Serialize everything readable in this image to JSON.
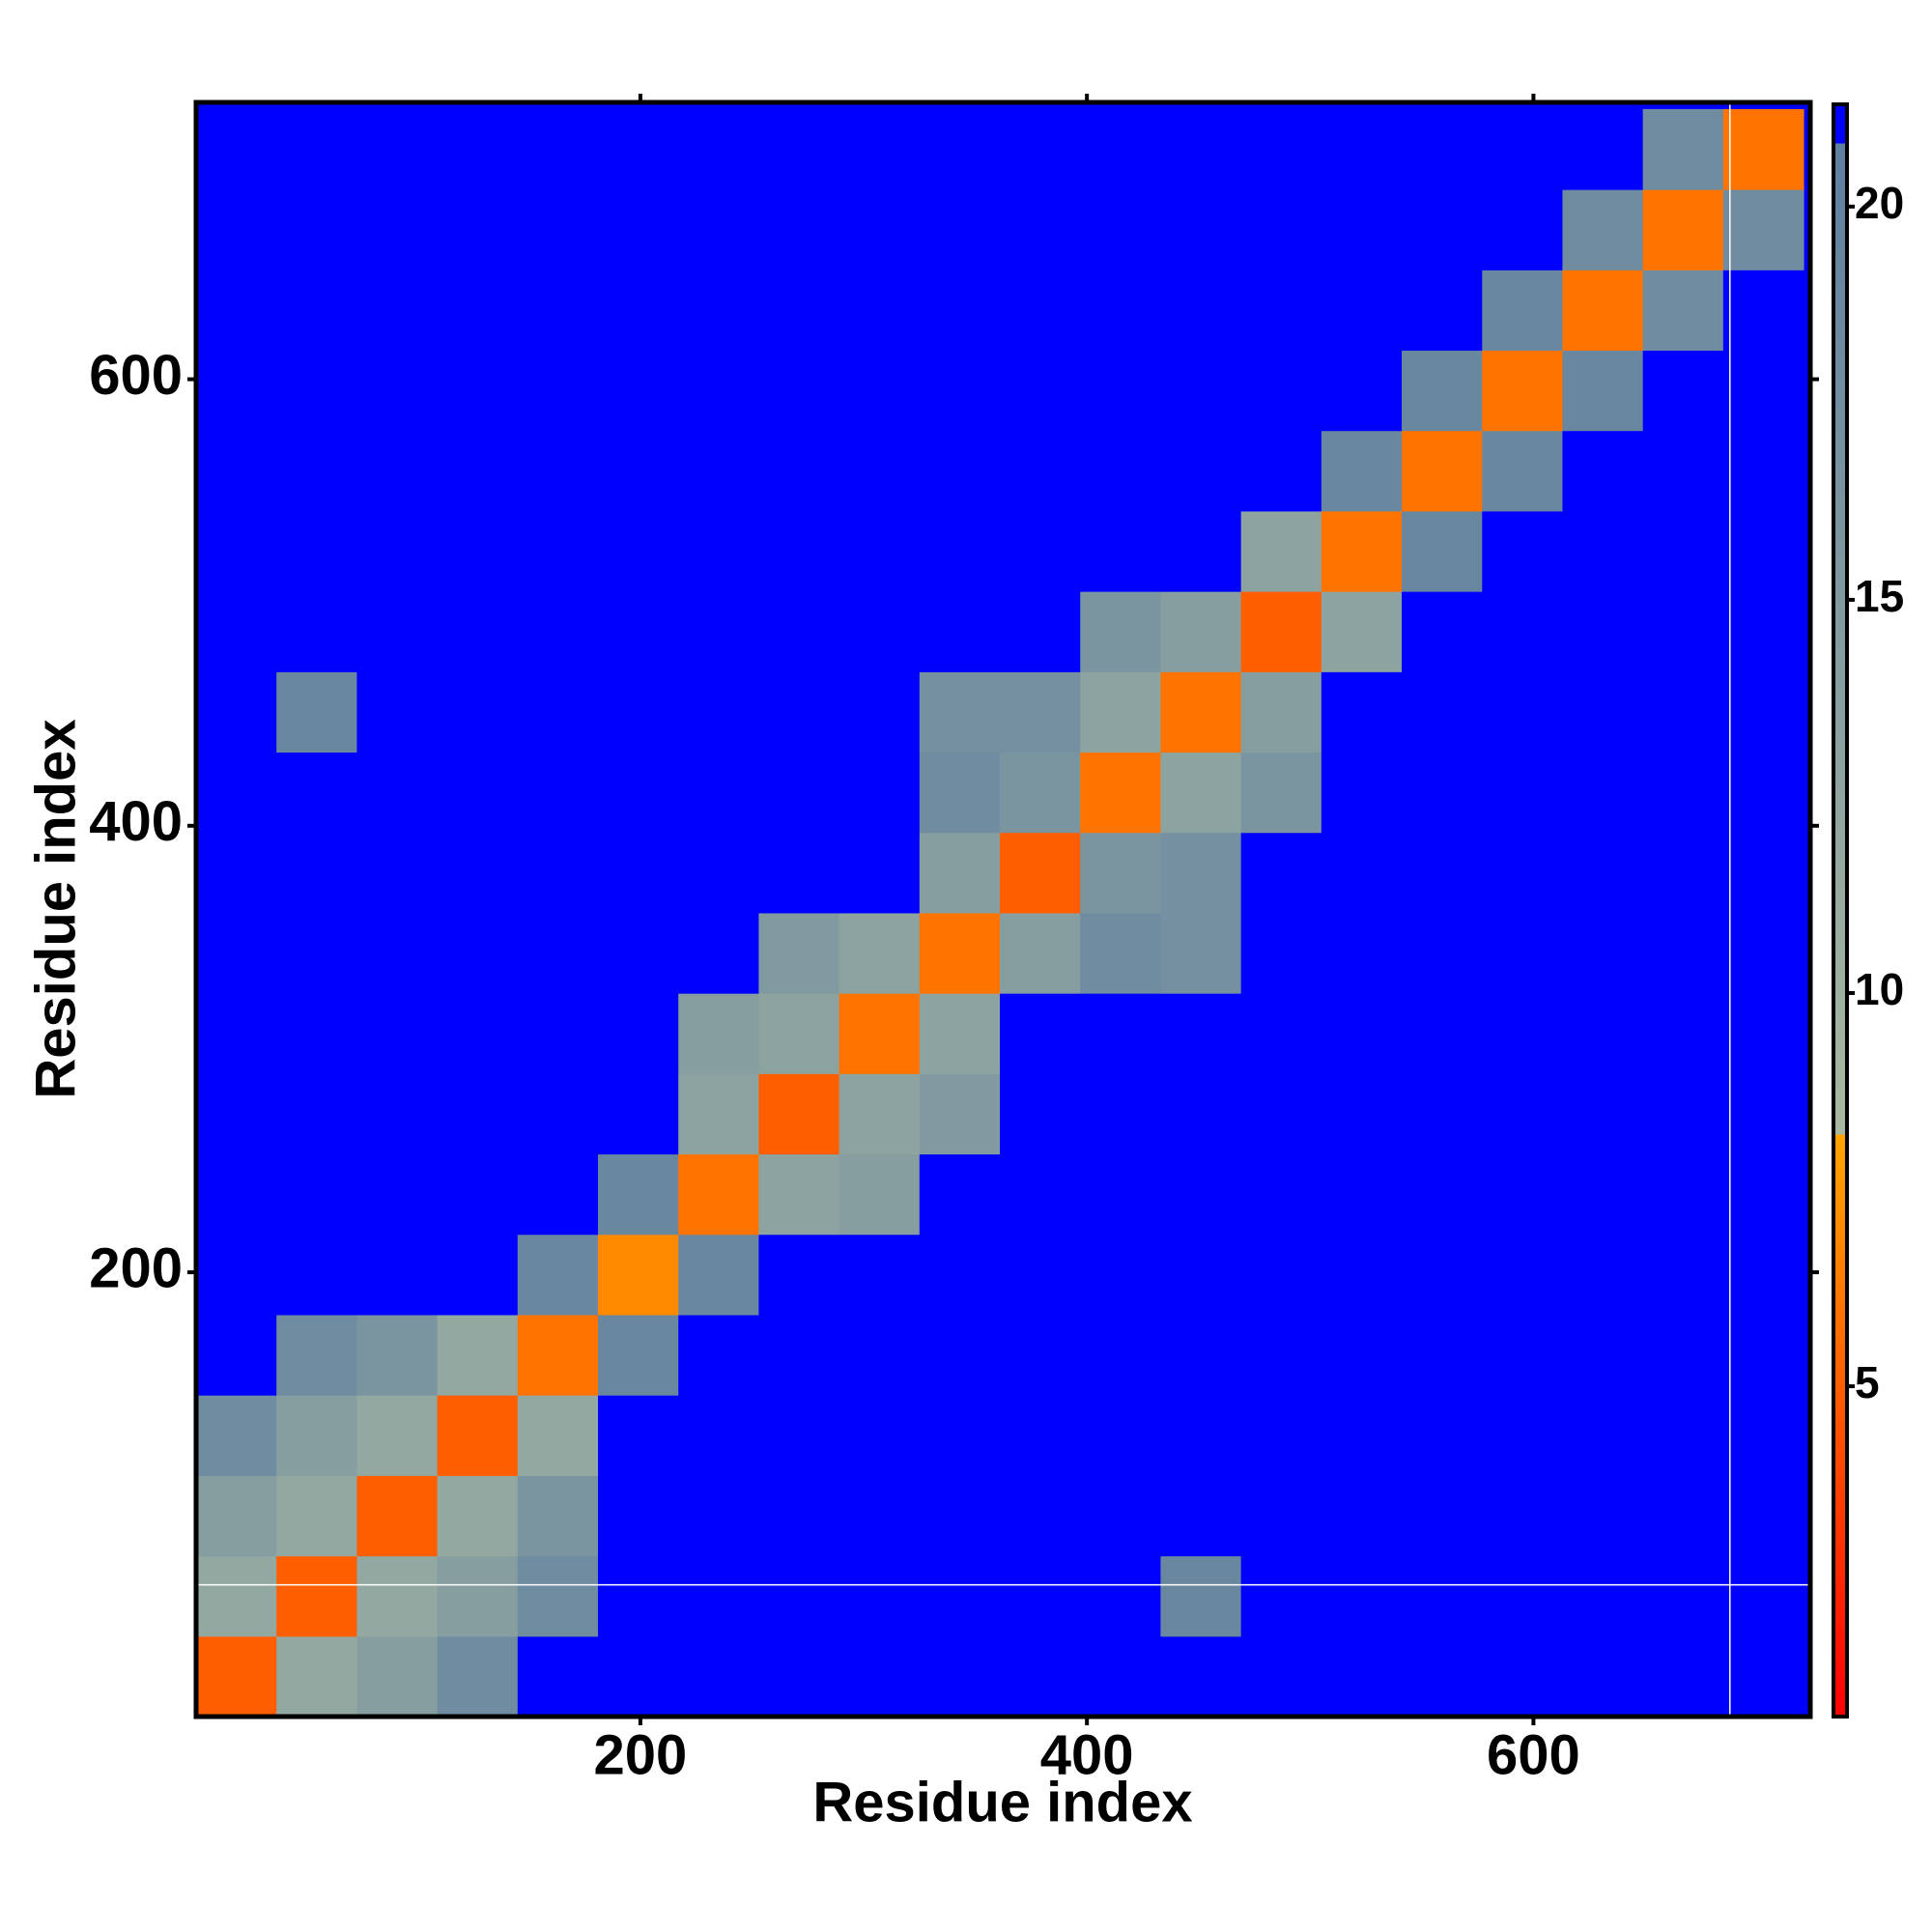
{
  "chart_data": {
    "type": "heatmap",
    "x_label": "Residue index",
    "y_label": "Residue index",
    "xlim": [
      1,
      724
    ],
    "ylim": [
      1,
      724
    ],
    "xticks": [
      200,
      400,
      600
    ],
    "yticks": [
      200,
      400,
      600
    ],
    "bins": [
      1,
      37,
      73,
      109,
      145,
      181,
      217,
      253,
      289,
      325,
      361,
      397,
      433,
      469,
      505,
      541,
      577,
      613,
      649,
      685,
      721
    ],
    "z": [
      [
        5,
        12,
        14,
        18,
        21,
        21,
        21,
        21,
        21,
        21,
        21,
        21,
        21,
        21,
        21,
        21,
        21,
        21,
        21,
        21
      ],
      [
        12,
        5,
        12,
        14,
        18,
        21,
        21,
        21,
        21,
        21,
        21,
        21,
        19,
        21,
        21,
        21,
        21,
        21,
        21,
        21
      ],
      [
        14,
        12,
        5,
        12,
        16,
        21,
        21,
        21,
        21,
        21,
        21,
        21,
        21,
        21,
        21,
        21,
        21,
        21,
        21,
        21
      ],
      [
        18,
        14,
        12,
        5,
        12,
        21,
        21,
        21,
        21,
        21,
        21,
        21,
        21,
        21,
        21,
        21,
        21,
        21,
        21,
        21
      ],
      [
        21,
        18,
        16,
        12,
        6,
        19,
        21,
        21,
        21,
        21,
        21,
        21,
        21,
        21,
        21,
        21,
        21,
        21,
        21,
        21
      ],
      [
        21,
        21,
        21,
        21,
        19,
        7,
        19,
        21,
        21,
        21,
        21,
        21,
        21,
        21,
        21,
        21,
        21,
        21,
        21,
        21
      ],
      [
        21,
        21,
        21,
        21,
        21,
        19,
        6,
        13,
        14,
        21,
        21,
        21,
        21,
        21,
        21,
        21,
        21,
        21,
        21,
        21
      ],
      [
        21,
        21,
        21,
        21,
        21,
        21,
        13,
        5,
        13,
        15,
        21,
        21,
        21,
        21,
        21,
        21,
        21,
        21,
        21,
        21
      ],
      [
        21,
        21,
        21,
        21,
        21,
        21,
        14,
        13,
        6,
        13,
        21,
        21,
        21,
        21,
        21,
        21,
        21,
        21,
        21,
        21
      ],
      [
        21,
        21,
        21,
        21,
        21,
        21,
        21,
        15,
        13,
        6,
        14,
        18,
        17,
        21,
        21,
        21,
        21,
        21,
        21,
        21
      ],
      [
        21,
        21,
        21,
        21,
        21,
        21,
        21,
        21,
        21,
        14,
        5,
        16,
        17,
        21,
        21,
        21,
        21,
        21,
        21,
        21
      ],
      [
        21,
        21,
        21,
        21,
        21,
        21,
        21,
        21,
        21,
        18,
        16,
        6,
        13,
        16,
        21,
        21,
        21,
        21,
        21,
        21
      ],
      [
        21,
        19,
        21,
        21,
        21,
        21,
        21,
        21,
        21,
        17,
        17,
        13,
        6,
        14,
        21,
        21,
        21,
        21,
        21,
        21
      ],
      [
        21,
        21,
        21,
        21,
        21,
        21,
        21,
        21,
        21,
        21,
        21,
        16,
        14,
        5,
        13,
        21,
        21,
        21,
        21,
        21
      ],
      [
        21,
        21,
        21,
        21,
        21,
        21,
        21,
        21,
        21,
        21,
        21,
        21,
        21,
        13,
        6,
        19,
        21,
        21,
        21,
        21
      ],
      [
        21,
        21,
        21,
        21,
        21,
        21,
        21,
        21,
        21,
        21,
        21,
        21,
        21,
        21,
        19,
        6,
        19,
        21,
        21,
        21
      ],
      [
        21,
        21,
        21,
        21,
        21,
        21,
        21,
        21,
        21,
        21,
        21,
        21,
        21,
        21,
        21,
        19,
        6,
        19,
        21,
        21
      ],
      [
        21,
        21,
        21,
        21,
        21,
        21,
        21,
        21,
        21,
        21,
        21,
        21,
        21,
        21,
        21,
        21,
        19,
        6,
        18,
        21
      ],
      [
        21,
        21,
        21,
        21,
        21,
        21,
        21,
        21,
        21,
        21,
        21,
        21,
        21,
        21,
        21,
        21,
        21,
        18,
        6,
        18
      ],
      [
        21,
        21,
        21,
        21,
        21,
        21,
        21,
        21,
        21,
        21,
        21,
        21,
        21,
        21,
        21,
        21,
        21,
        21,
        18,
        6
      ]
    ],
    "missing": {
      "x": [
        688
      ],
      "y": [
        60
      ]
    },
    "colorscale": [
      [
        0.8,
        "#ff0000"
      ],
      [
        8.2,
        "#ffa500"
      ],
      [
        8.2,
        "#a9b9a0"
      ],
      [
        20.8,
        "#5f7fa0"
      ],
      [
        20.8,
        "#0000ff"
      ],
      [
        21.3,
        "#0000ff"
      ]
    ],
    "colorbar": {
      "lim": [
        0.8,
        21.3
      ],
      "ticks": [
        5,
        10,
        15,
        20
      ]
    }
  }
}
